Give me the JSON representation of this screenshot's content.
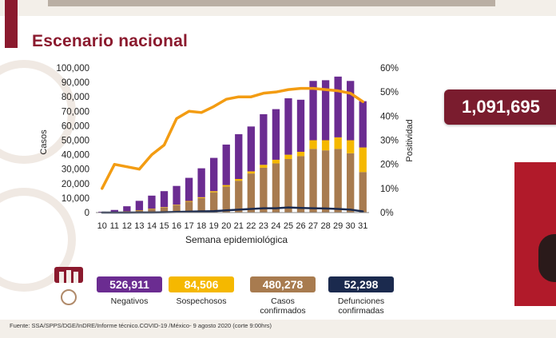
{
  "header": {
    "title": "Escenario nacional"
  },
  "total": {
    "value": "1,091,695"
  },
  "legend": {
    "negativos": {
      "value": "526,911",
      "label": "Negativos",
      "color": "#6b2c91"
    },
    "sospechosos": {
      "value": "84,506",
      "label": "Sospechosos",
      "color": "#f5b800"
    },
    "confirmados": {
      "value": "480,278",
      "label": "Casos confirmados",
      "color": "#a87b4f"
    },
    "defunciones": {
      "value": "52,298",
      "label": "Defunciones confirmadas",
      "color": "#1b2a4e"
    }
  },
  "footer": {
    "source": "Fuente: SSA/SPPS/DGE/InDRE/Informe técnico.COVID-19 /México- 9 agosto 2020 (corte 9:00hrs)"
  },
  "chart_data": {
    "type": "bar",
    "stacked": true,
    "xlabel": "Semana epidemiológica",
    "ylabel": "Casos",
    "y2label": "Positividad",
    "ylim": [
      0,
      100000
    ],
    "y2lim": [
      0,
      60
    ],
    "yticks": [
      "0",
      "10,000",
      "20,000",
      "30,000",
      "40,000",
      "50,000",
      "60,000",
      "70,000",
      "80,000",
      "90,000",
      "100,000"
    ],
    "y2ticks": [
      "0%",
      "10%",
      "20%",
      "30%",
      "40%",
      "50%",
      "60%"
    ],
    "categories": [
      "10",
      "11",
      "12",
      "13",
      "14",
      "15",
      "16",
      "17",
      "18",
      "19",
      "20",
      "21",
      "22",
      "23",
      "24",
      "25",
      "26",
      "27",
      "28",
      "29",
      "30",
      "31"
    ],
    "series": [
      {
        "kind": "bar",
        "color": "#a87b4f",
        "values": [
          100,
          300,
          800,
          1500,
          2500,
          3500,
          5000,
          7500,
          10000,
          14000,
          18000,
          22000,
          27000,
          31000,
          34000,
          37000,
          39000,
          44000,
          43000,
          44000,
          41000,
          28000
        ]
      },
      {
        "kind": "bar",
        "color": "#f5b800",
        "values": [
          0,
          0,
          50,
          100,
          200,
          300,
          400,
          500,
          600,
          800,
          1000,
          1200,
          1500,
          2000,
          2500,
          3000,
          3000,
          6000,
          7000,
          8000,
          9000,
          17000
        ]
      },
      {
        "kind": "bar",
        "color": "#6b2c91",
        "values": [
          500,
          1500,
          3500,
          6500,
          9000,
          11000,
          13000,
          16000,
          20000,
          23000,
          28000,
          31000,
          31000,
          35000,
          35000,
          39000,
          36000,
          41000,
          41500,
          42000,
          41000,
          32000
        ]
      },
      {
        "kind": "line",
        "color": "#1b2a4e",
        "values": [
          0,
          0,
          10,
          50,
          100,
          200,
          400,
          600,
          800,
          1000,
          1500,
          2000,
          2500,
          3000,
          3000,
          3500,
          3200,
          3000,
          2800,
          2500,
          2000,
          800
        ]
      },
      {
        "kind": "line",
        "axis": "y2",
        "color": "#f39c12",
        "values": [
          10,
          20,
          19,
          18,
          24,
          28,
          39,
          42,
          41.5,
          44,
          47,
          48,
          48,
          49.5,
          50,
          51,
          51.5,
          51.5,
          51,
          50.5,
          49.5,
          46
        ]
      }
    ]
  }
}
